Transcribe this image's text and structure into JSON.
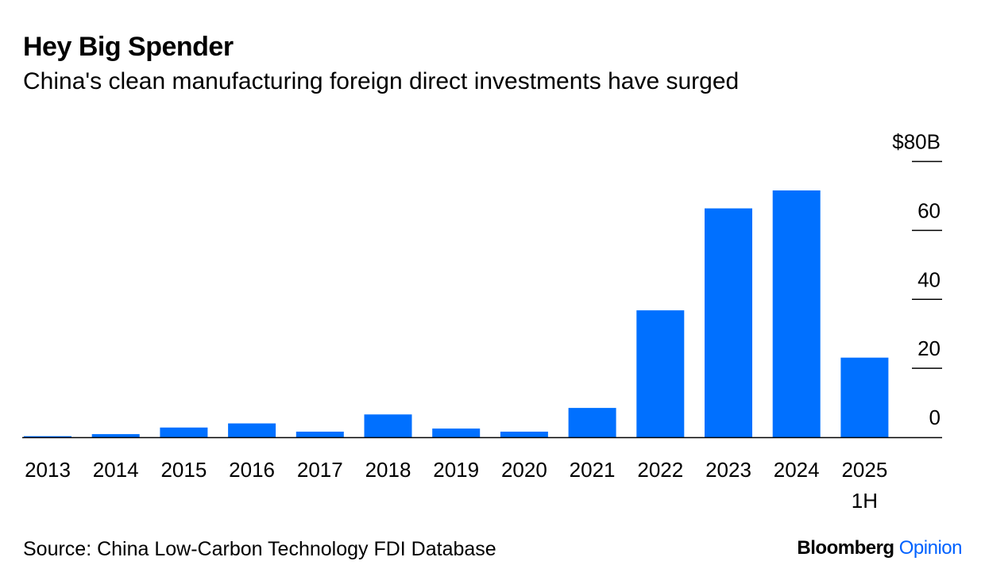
{
  "header": {
    "title": "Hey Big Spender",
    "subtitle": "China's clean manufacturing foreign direct investments have surged"
  },
  "footer": {
    "source": "Source: China Low-Carbon Technology FDI Database",
    "brand_primary": "Bloomberg",
    "brand_secondary": "Opinion"
  },
  "colors": {
    "bar": "#0070ff",
    "axis": "#000000",
    "brand_accent": "#0062ff"
  },
  "chart_data": {
    "type": "bar",
    "title": "Hey Big Spender",
    "subtitle": "China's clean manufacturing foreign direct investments have surged",
    "xlabel": "",
    "ylabel": "",
    "categories": [
      "2013",
      "2014",
      "2015",
      "2016",
      "2017",
      "2018",
      "2019",
      "2020",
      "2021",
      "2022",
      "2023",
      "2024",
      "2025"
    ],
    "category_sublabels": [
      "",
      "",
      "",
      "",
      "",
      "",
      "",
      "",
      "",
      "",
      "",
      "",
      "1H"
    ],
    "values": [
      0.3,
      0.9,
      2.8,
      4.0,
      1.6,
      6.6,
      2.5,
      1.6,
      8.5,
      36.8,
      66.4,
      71.6,
      23.1
    ],
    "ylim": [
      0,
      80
    ],
    "yticks": [
      0,
      20,
      40,
      60,
      80
    ],
    "ytick_labels": [
      "0",
      "20",
      "40",
      "60",
      "$80B"
    ],
    "y_axis_side": "right",
    "grid": false,
    "legend": "none"
  }
}
